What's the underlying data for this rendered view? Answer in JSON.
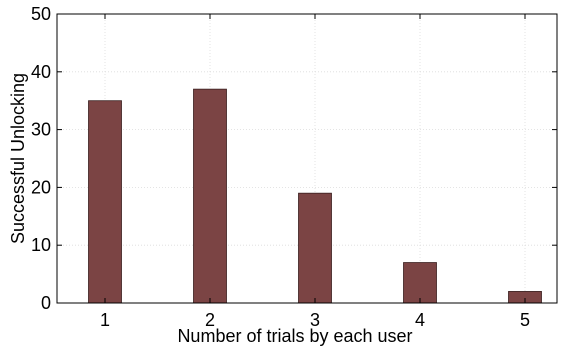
{
  "chart_data": {
    "type": "bar",
    "categories": [
      "1",
      "2",
      "3",
      "4",
      "5"
    ],
    "values": [
      35,
      37,
      19,
      7,
      2
    ],
    "title": "",
    "xlabel": "Number of trials by each user",
    "ylabel": "Successful Unlocking",
    "ylim": [
      0,
      50
    ],
    "yticks": [
      "0",
      "10",
      "20",
      "30",
      "40",
      "50"
    ],
    "grid": true,
    "bar_color": "#7b4444"
  }
}
